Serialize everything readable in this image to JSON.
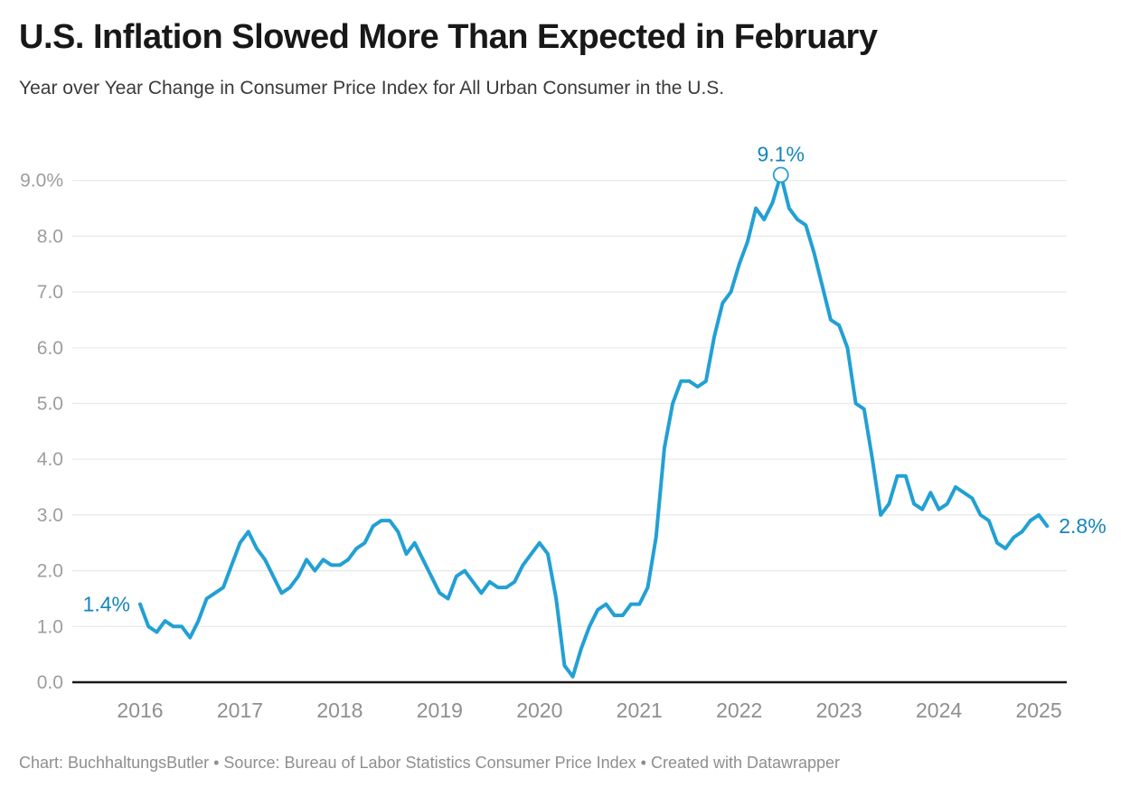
{
  "header": {
    "title": "U.S. Inflation Slowed More Than Expected in February",
    "subtitle": "Year over Year Change in Consumer Price Index for All Urban Consumer in the U.S."
  },
  "footer": {
    "text": "Chart: BuchhaltungsButler • Source: Bureau of Labor Statistics Consumer Price Index • Created with Datawrapper"
  },
  "chart_data": {
    "type": "line",
    "title": "U.S. Inflation Slowed More Than Expected in February",
    "subtitle": "Year over Year Change in Consumer Price Index for All Urban Consumer in the U.S.",
    "x_range": [
      "2016-01",
      "2025-02"
    ],
    "frequency": "monthly",
    "ylim": [
      0,
      9.5
    ],
    "grid": "horizontal",
    "legend": "none",
    "y_ticks": [
      {
        "value": 0,
        "label": "0.0"
      },
      {
        "value": 1,
        "label": "1.0"
      },
      {
        "value": 2,
        "label": "2.0"
      },
      {
        "value": 3,
        "label": "3.0"
      },
      {
        "value": 4,
        "label": "4.0"
      },
      {
        "value": 5,
        "label": "5.0"
      },
      {
        "value": 6,
        "label": "6.0"
      },
      {
        "value": 7,
        "label": "7.0"
      },
      {
        "value": 8,
        "label": "8.0"
      },
      {
        "value": 9,
        "label": "9.0%"
      }
    ],
    "x_ticks": [
      {
        "year_offset": 0,
        "label": "2016"
      },
      {
        "year_offset": 1,
        "label": "2017"
      },
      {
        "year_offset": 2,
        "label": "2018"
      },
      {
        "year_offset": 3,
        "label": "2019"
      },
      {
        "year_offset": 4,
        "label": "2020"
      },
      {
        "year_offset": 5,
        "label": "2021"
      },
      {
        "year_offset": 6,
        "label": "2022"
      },
      {
        "year_offset": 7,
        "label": "2023"
      },
      {
        "year_offset": 8,
        "label": "2024"
      },
      {
        "year_offset": 9,
        "label": "2025"
      }
    ],
    "series": [
      {
        "name": "CPI YoY change (%)",
        "values": [
          1.4,
          1.0,
          0.9,
          1.1,
          1.0,
          1.0,
          0.8,
          1.1,
          1.5,
          1.6,
          1.7,
          2.1,
          2.5,
          2.7,
          2.4,
          2.2,
          1.9,
          1.6,
          1.7,
          1.9,
          2.2,
          2.0,
          2.2,
          2.1,
          2.1,
          2.2,
          2.4,
          2.5,
          2.8,
          2.9,
          2.9,
          2.7,
          2.3,
          2.5,
          2.2,
          1.9,
          1.6,
          1.5,
          1.9,
          2.0,
          1.8,
          1.6,
          1.8,
          1.7,
          1.7,
          1.8,
          2.1,
          2.3,
          2.5,
          2.3,
          1.5,
          0.3,
          0.1,
          0.6,
          1.0,
          1.3,
          1.4,
          1.2,
          1.2,
          1.4,
          1.4,
          1.7,
          2.6,
          4.2,
          5.0,
          5.4,
          5.4,
          5.3,
          5.4,
          6.2,
          6.8,
          7.0,
          7.5,
          7.9,
          8.5,
          8.3,
          8.6,
          9.1,
          8.5,
          8.3,
          8.2,
          7.7,
          7.1,
          6.5,
          6.4,
          6.0,
          5.0,
          4.9,
          4.0,
          3.0,
          3.2,
          3.7,
          3.7,
          3.2,
          3.1,
          3.4,
          3.1,
          3.2,
          3.5,
          3.4,
          3.3,
          3.0,
          2.9,
          2.5,
          2.4,
          2.6,
          2.7,
          2.9,
          3.0,
          2.8
        ]
      }
    ],
    "annotations": [
      {
        "label": "1.4%",
        "month_index": 0,
        "position": "left",
        "marker": "none"
      },
      {
        "label": "9.1%",
        "month_index": 77,
        "position": "top",
        "marker": "open-circle"
      },
      {
        "label": "2.8%",
        "month_index": 109,
        "position": "right",
        "marker": "none"
      }
    ],
    "colors": {
      "line": "#22a0d4",
      "annotation_text": "#1585ba",
      "gridline": "#e8e8e8",
      "baseline": "#181818",
      "y_tick_text": "#9d9d9d",
      "x_tick_text": "#8f8f8f"
    }
  }
}
